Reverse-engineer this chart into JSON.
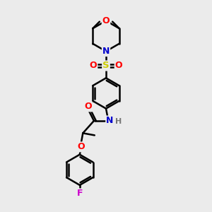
{
  "bg_color": "#ebebeb",
  "atom_colors": {
    "O": "#ff0000",
    "N": "#0000cc",
    "S": "#cccc00",
    "F": "#cc00cc",
    "H": "#777777",
    "C": "#000000"
  },
  "bond_color": "#000000",
  "bond_width": 1.8,
  "fig_size": [
    3.0,
    3.0
  ],
  "dpi": 100
}
